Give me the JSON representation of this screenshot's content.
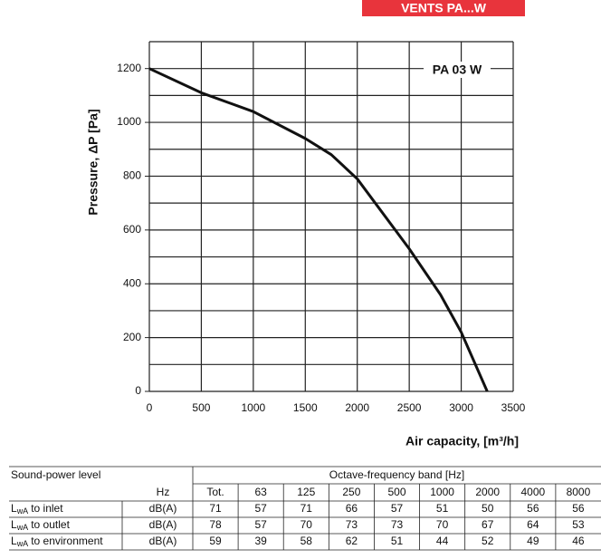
{
  "header": {
    "title": "VENTS PA...W"
  },
  "chart_data": {
    "type": "line",
    "annotation": "PA 03 W",
    "x_label": "Air capacity, [m³/h]",
    "y_label": "Pressure, ΔP [Pa]",
    "x": [
      0,
      500,
      1000,
      1500,
      1750,
      2000,
      2500,
      2800,
      3000,
      3250
    ],
    "values": [
      1200,
      1110,
      1040,
      940,
      880,
      790,
      530,
      360,
      220,
      0
    ],
    "color": "#111111",
    "xlim": [
      0,
      3500
    ],
    "ylim": [
      0,
      1300
    ],
    "xticks": [
      0,
      500,
      1000,
      1500,
      2000,
      2500,
      3000,
      3500
    ],
    "yticks": [
      0,
      200,
      400,
      600,
      800,
      1000,
      1200
    ],
    "ygrid": [
      0,
      100,
      200,
      300,
      400,
      500,
      600,
      700,
      800,
      900,
      1000,
      1100,
      1200,
      1300
    ],
    "grid": true
  },
  "table": {
    "title": "Sound-power level",
    "band_title": "Octave-frequency band [Hz]",
    "hz_label": "Hz",
    "columns": [
      "Tot.",
      "63",
      "125",
      "250",
      "500",
      "1000",
      "2000",
      "4000",
      "8000"
    ],
    "rows": [
      {
        "symbol": "L",
        "sub": "wA",
        "text": "to inlet",
        "unit": "dB(A)",
        "values": [
          71,
          57,
          71,
          66,
          57,
          51,
          50,
          56,
          56
        ]
      },
      {
        "symbol": "L",
        "sub": "wA",
        "text": "to outlet",
        "unit": "dB(A)",
        "values": [
          78,
          57,
          70,
          73,
          73,
          70,
          67,
          64,
          53
        ]
      },
      {
        "symbol": "L",
        "sub": "wA",
        "text": "to environment",
        "unit": "dB(A)",
        "values": [
          59,
          39,
          58,
          62,
          51,
          44,
          52,
          49,
          46
        ]
      }
    ]
  }
}
